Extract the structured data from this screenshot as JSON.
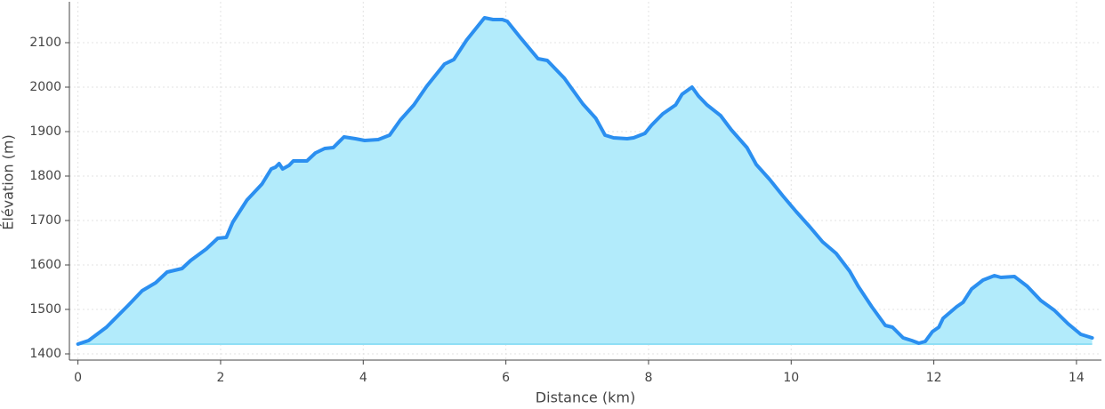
{
  "chart_data": {
    "type": "area",
    "x_label": "Distance (km)",
    "y_label": "Élévation (m)",
    "x": [
      0,
      0.15,
      0.4,
      0.71,
      0.9,
      1.09,
      1.25,
      1.46,
      1.58,
      1.8,
      1.96,
      2.08,
      2.17,
      2.37,
      2.58,
      2.71,
      2.77,
      2.82,
      2.87,
      2.96,
      3.02,
      3.21,
      3.33,
      3.46,
      3.58,
      3.73,
      3.89,
      4.02,
      4.21,
      4.37,
      4.52,
      4.71,
      4.89,
      5.14,
      5.27,
      5.45,
      5.7,
      5.82,
      5.95,
      6.02,
      6.2,
      6.45,
      6.58,
      6.82,
      7.08,
      7.26,
      7.39,
      7.51,
      7.7,
      7.79,
      7.95,
      8.04,
      8.2,
      8.38,
      8.47,
      8.61,
      8.7,
      8.82,
      9.01,
      9.16,
      9.38,
      9.51,
      9.7,
      9.88,
      10.07,
      10.26,
      10.44,
      10.63,
      10.82,
      10.94,
      11.13,
      11.32,
      11.42,
      11.57,
      11.69,
      11.79,
      11.88,
      11.98,
      12.07,
      12.13,
      12.32,
      12.41,
      12.53,
      12.69,
      12.85,
      12.94,
      13.13,
      13.31,
      13.5,
      13.69,
      13.88,
      14.06,
      14.22
    ],
    "values": [
      1422,
      1430,
      1460,
      1510,
      1542,
      1560,
      1584,
      1592,
      1610,
      1636,
      1660,
      1662,
      1696,
      1746,
      1782,
      1816,
      1820,
      1828,
      1816,
      1824,
      1834,
      1834,
      1852,
      1862,
      1864,
      1888,
      1884,
      1880,
      1882,
      1892,
      1926,
      1960,
      2002,
      2052,
      2062,
      2106,
      2156,
      2152,
      2152,
      2148,
      2112,
      2064,
      2060,
      2020,
      1962,
      1930,
      1892,
      1886,
      1884,
      1886,
      1896,
      1914,
      1940,
      1960,
      1984,
      2000,
      1980,
      1960,
      1936,
      1904,
      1864,
      1826,
      1792,
      1756,
      1720,
      1686,
      1652,
      1626,
      1586,
      1552,
      1506,
      1464,
      1460,
      1436,
      1430,
      1424,
      1428,
      1450,
      1460,
      1480,
      1506,
      1516,
      1546,
      1566,
      1576,
      1572,
      1574,
      1552,
      1520,
      1498,
      1468,
      1444,
      1436
    ],
    "color": "#2b8ff0",
    "fill_color": "#b2ebfb",
    "xlim": [
      -0.12,
      14.35
    ],
    "ylim": [
      1386,
      2192
    ],
    "xticks": [
      0,
      2,
      4,
      6,
      8,
      10,
      12,
      14
    ],
    "yticks": [
      1400,
      1500,
      1600,
      1700,
      1800,
      1900,
      2000,
      2100
    ],
    "grid": true
  }
}
